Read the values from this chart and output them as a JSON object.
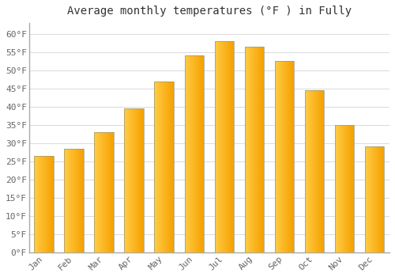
{
  "title": "Average monthly temperatures (°F ) in Fully",
  "months": [
    "Jan",
    "Feb",
    "Mar",
    "Apr",
    "May",
    "Jun",
    "Jul",
    "Aug",
    "Sep",
    "Oct",
    "Nov",
    "Dec"
  ],
  "values": [
    26.5,
    28.5,
    33.0,
    39.5,
    47.0,
    54.0,
    58.0,
    56.5,
    52.5,
    44.5,
    35.0,
    29.0
  ],
  "bar_color_light": "#FFCC44",
  "bar_color_dark": "#F5A000",
  "bar_outline": "#999977",
  "ylim": [
    0,
    63
  ],
  "yticks": [
    0,
    5,
    10,
    15,
    20,
    25,
    30,
    35,
    40,
    45,
    50,
    55,
    60
  ],
  "background_color": "#ffffff",
  "grid_color": "#dddddd",
  "title_fontsize": 10,
  "tick_fontsize": 8,
  "title_color": "#333333",
  "tick_color": "#666666",
  "bar_width": 0.65
}
